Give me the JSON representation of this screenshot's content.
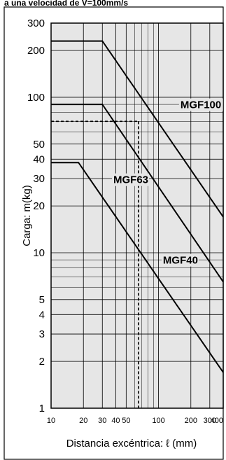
{
  "chart_data": {
    "type": "line",
    "title": "a una velocidad de V=100mm/s",
    "xlabel": "Distancia excéntrica: ℓ (mm)",
    "ylabel": "Carga: m(kg)",
    "xscale": "log",
    "yscale": "log",
    "xlim": [
      10,
      400
    ],
    "ylim": [
      1,
      300
    ],
    "x_ticks": [
      10,
      20,
      30,
      40,
      50,
      100,
      200,
      300,
      400
    ],
    "y_ticks": [
      1,
      2,
      3,
      4,
      5,
      10,
      20,
      30,
      40,
      50,
      100,
      200,
      300
    ],
    "grid": true,
    "series": [
      {
        "name": "MGF100",
        "x": [
          10,
          30,
          400
        ],
        "y": [
          230,
          230,
          17
        ]
      },
      {
        "name": "MGF63",
        "x": [
          10,
          30,
          400
        ],
        "y": [
          90,
          90,
          6.5
        ]
      },
      {
        "name": "MGF40",
        "x": [
          10,
          18,
          400
        ],
        "y": [
          38,
          38,
          1.7
        ]
      }
    ],
    "reference": {
      "x": 65,
      "y": 70
    }
  }
}
